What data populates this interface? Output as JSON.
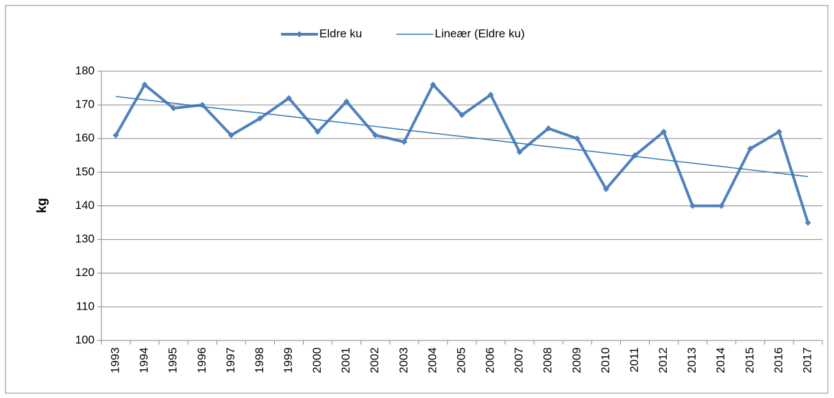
{
  "chart_data": {
    "type": "line",
    "y_label": "kg",
    "categories": [
      "1993",
      "1994",
      "1995",
      "1996",
      "1997",
      "1998",
      "1999",
      "2000",
      "2001",
      "2002",
      "2003",
      "2004",
      "2005",
      "2006",
      "2007",
      "2008",
      "2009",
      "2010",
      "2011",
      "2012",
      "2013",
      "2014",
      "2015",
      "2016",
      "2017"
    ],
    "series": [
      {
        "name": "Eldre ku",
        "color": "#4f81bd",
        "marker": "diamond",
        "values": [
          161,
          176,
          169,
          170,
          161,
          166,
          172,
          162,
          171,
          161,
          159,
          176,
          167,
          173,
          156,
          163,
          160,
          145,
          155,
          162,
          140,
          140,
          157,
          162,
          135
        ]
      },
      {
        "name": "Lineær (Eldre ku)",
        "color": "#2e75b6",
        "marker": "none",
        "values": [
          172.5,
          171.5,
          170.5,
          169.5,
          168.5,
          167.6,
          166.6,
          165.6,
          164.6,
          163.6,
          162.6,
          161.6,
          160.6,
          159.6,
          158.6,
          157.6,
          156.7,
          155.7,
          154.7,
          153.7,
          152.7,
          151.7,
          150.7,
          149.7,
          148.7
        ]
      }
    ],
    "ylim": [
      100,
      180
    ],
    "yticks": [
      100,
      110,
      120,
      130,
      140,
      150,
      160,
      170,
      180
    ],
    "grid": true,
    "legend": "top"
  }
}
